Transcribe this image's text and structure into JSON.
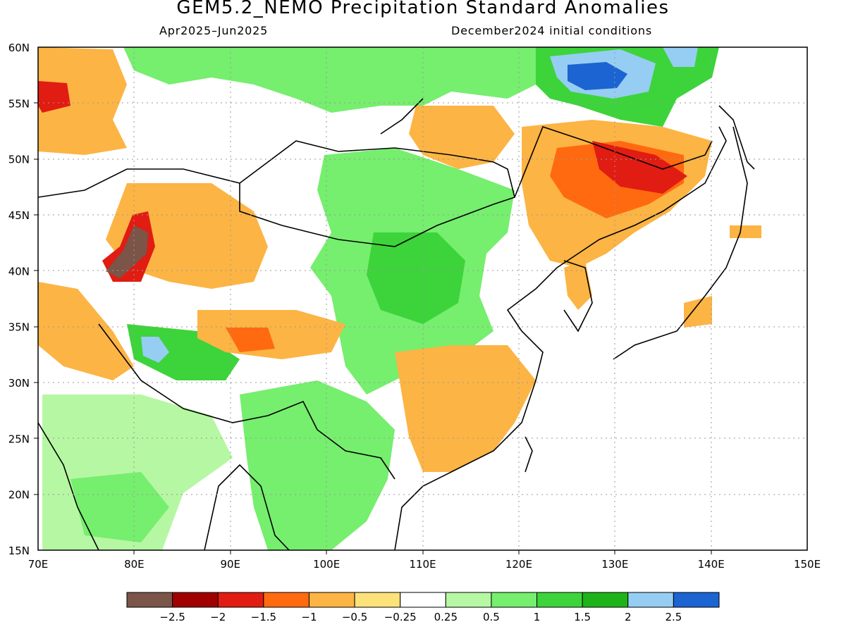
{
  "title": "GEM5.2_NEMO Precipitation Standard Anomalies",
  "subtitle_left": "Apr2025–Jun2025",
  "subtitle_right": "December2024 initial conditions",
  "map": {
    "lon_range": [
      70,
      150
    ],
    "lat_range": [
      15,
      60
    ],
    "lon_ticks": [
      "70E",
      "80E",
      "90E",
      "100E",
      "110E",
      "120E",
      "130E",
      "140E",
      "150E"
    ],
    "lat_ticks": [
      "15N",
      "20N",
      "25N",
      "30N",
      "35N",
      "40N",
      "45N",
      "50N",
      "55N",
      "60N"
    ],
    "gridlines": "dotted"
  },
  "colorbar": {
    "colors": [
      "#7a5548",
      "#a00000",
      "#e11c12",
      "#ff6a10",
      "#fcb444",
      "#fde27a",
      "#ffffff",
      "#b6f7a3",
      "#76ee6e",
      "#3cd43a",
      "#1fb31a",
      "#96cdf2",
      "#1b64d2"
    ],
    "labels": [
      "−2.5",
      "−2",
      "−1.5",
      "−1",
      "−0.5",
      "−0.25",
      "0.25",
      "0.5",
      "1",
      "1.5",
      "2",
      "2.5"
    ]
  }
}
